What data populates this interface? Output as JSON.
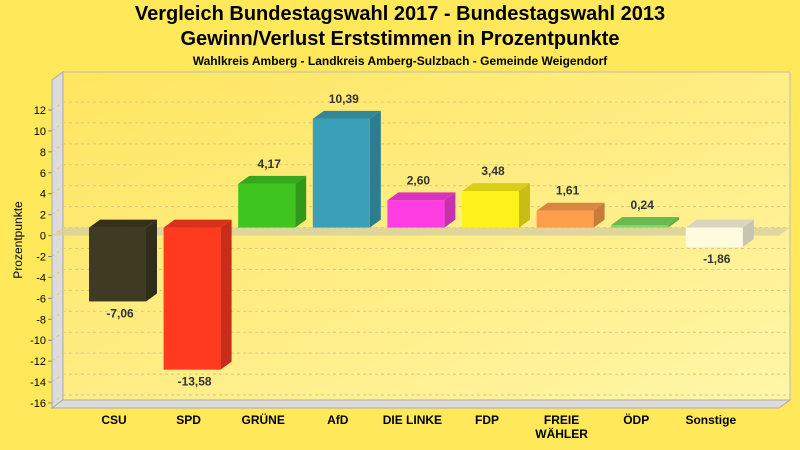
{
  "chart_data": {
    "type": "bar",
    "title": "Vergleich Bundestagswahl 2017 - Bundestagswahl 2013",
    "subtitle": "Gewinn/Verlust Erststimmen in Prozentpunkte",
    "subsubtitle": "Wahlkreis Amberg - Landkreis Amberg-Sulzbach - Gemeinde Weigendorf",
    "xlabel": "",
    "ylabel": "Prozentpunkte",
    "ylim": [
      -16,
      12
    ],
    "yticks": [
      12,
      10,
      8,
      6,
      4,
      2,
      0,
      -2,
      -4,
      -6,
      -8,
      -10,
      -12,
      -14,
      -16
    ],
    "grid": true,
    "categories": [
      "CSU",
      "SPD",
      "GRÜNE",
      "AfD",
      "DIE LINKE",
      "FDP",
      "FREIE WÄHLER",
      "ÖDP",
      "Sonstige"
    ],
    "values": [
      -7.06,
      -13.58,
      4.17,
      10.39,
      2.6,
      3.48,
      1.61,
      0.24,
      -1.86
    ],
    "labels": [
      "-7,06",
      "-13,58",
      "4,17",
      "10,39",
      "2,60",
      "3,48",
      "1,61",
      "0,24",
      "-1,86"
    ],
    "colors": [
      "#3f3a22",
      "#ff3a1f",
      "#3ec41e",
      "#3a9fb8",
      "#ff3de0",
      "#fff21a",
      "#ff9e4a",
      "#7fd860",
      "#fffbe0"
    ]
  }
}
